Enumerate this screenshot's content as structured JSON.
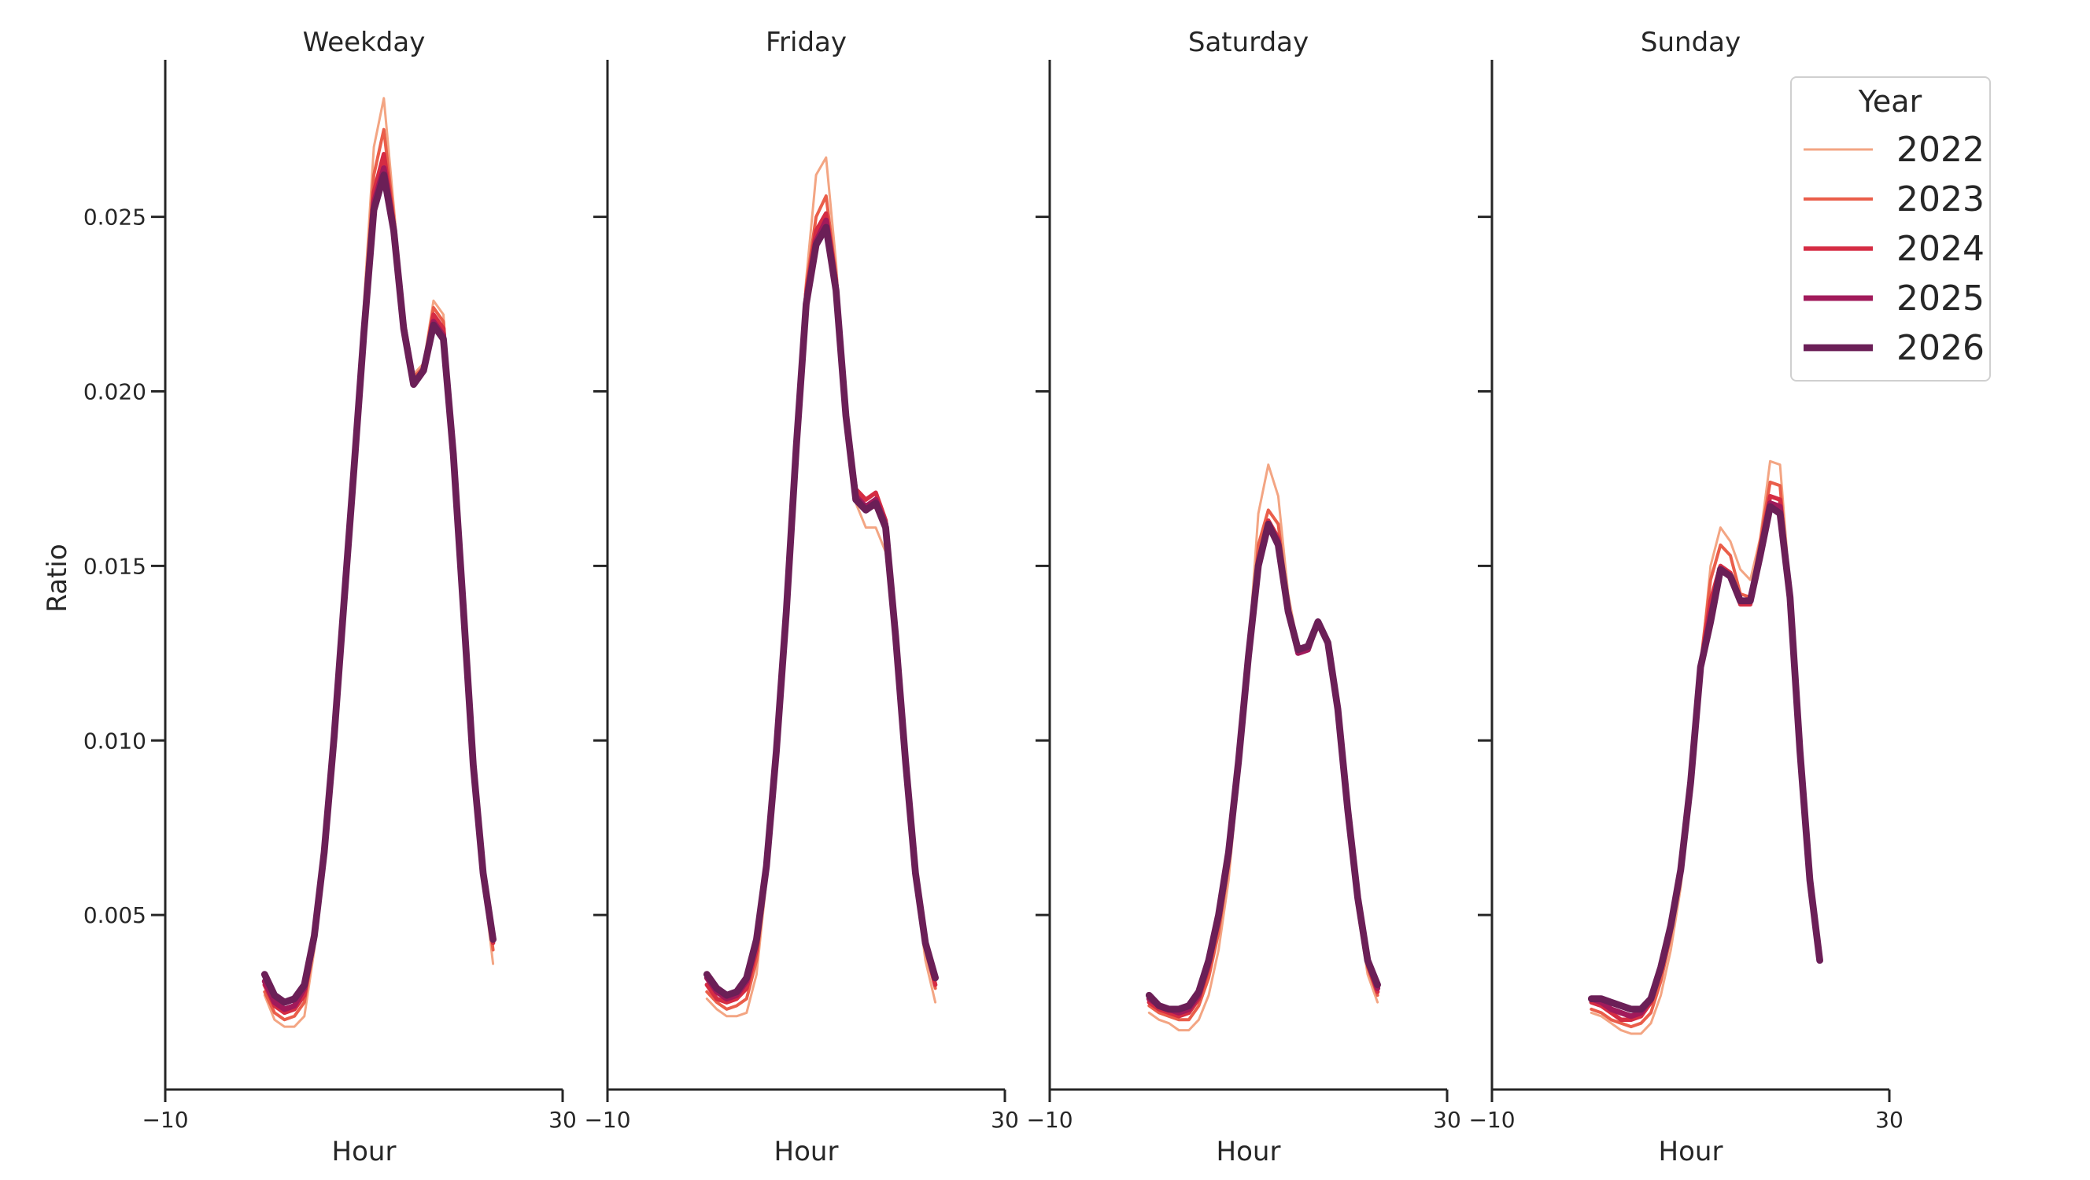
{
  "chart_data": {
    "type": "line",
    "ylabel": "Ratio",
    "xlabel": "Hour",
    "xlim": [
      -10,
      30
    ],
    "xticks": [
      "−10",
      "30"
    ],
    "ylim": [
      0,
      0.0295
    ],
    "yticks": [
      0.005,
      0.01,
      0.015,
      0.02,
      0.025
    ],
    "ytick_labels": [
      "0.005",
      "0.010",
      "0.015",
      "0.020",
      "0.025"
    ],
    "legend": {
      "title": "Year",
      "placement": "top-right"
    },
    "series_styles": [
      {
        "name": "2022",
        "color": "#f3a583",
        "width": 1.2
      },
      {
        "name": "2023",
        "color": "#ea5e4a",
        "width": 1.6
      },
      {
        "name": "2024",
        "color": "#d52c43",
        "width": 2.2
      },
      {
        "name": "2025",
        "color": "#a11a5b",
        "width": 2.8
      },
      {
        "name": "2026",
        "color": "#6b1f57",
        "width": 3.5
      }
    ],
    "x": [
      0,
      1,
      2,
      3,
      4,
      5,
      6,
      7,
      8,
      9,
      10,
      11,
      12,
      13,
      14,
      15,
      16,
      17,
      18,
      19,
      20,
      21,
      22,
      23
    ],
    "panels": [
      {
        "title": "Weekday",
        "series": [
          {
            "name": "2022",
            "values": [
              0.0027,
              0.002,
              0.0018,
              0.0018,
              0.0021,
              0.004,
              0.0066,
              0.01,
              0.014,
              0.018,
              0.0225,
              0.027,
              0.0284,
              0.0253,
              0.0222,
              0.0205,
              0.0208,
              0.0226,
              0.0222,
              0.0183,
              0.0138,
              0.0093,
              0.006,
              0.0036
            ]
          },
          {
            "name": "2023",
            "values": [
              0.0028,
              0.0022,
              0.002,
              0.0021,
              0.0025,
              0.0042,
              0.0067,
              0.0101,
              0.0141,
              0.018,
              0.0222,
              0.0262,
              0.0275,
              0.025,
              0.022,
              0.0204,
              0.0207,
              0.0224,
              0.022,
              0.0182,
              0.0137,
              0.0093,
              0.0061,
              0.004
            ]
          },
          {
            "name": "2024",
            "values": [
              0.003,
              0.0024,
              0.0022,
              0.0023,
              0.0027,
              0.0043,
              0.0067,
              0.0101,
              0.014,
              0.0179,
              0.022,
              0.0257,
              0.0268,
              0.0248,
              0.0219,
              0.0203,
              0.0206,
              0.0222,
              0.0218,
              0.0182,
              0.0137,
              0.0093,
              0.0061,
              0.0042
            ]
          },
          {
            "name": "2025",
            "values": [
              0.0031,
              0.0025,
              0.0023,
              0.0024,
              0.0029,
              0.0043,
              0.0068,
              0.0101,
              0.014,
              0.0178,
              0.0218,
              0.0254,
              0.0264,
              0.0247,
              0.0219,
              0.0202,
              0.0206,
              0.022,
              0.0216,
              0.0182,
              0.0138,
              0.0093,
              0.0062,
              0.0043
            ]
          },
          {
            "name": "2026",
            "values": [
              0.0033,
              0.0027,
              0.0025,
              0.0026,
              0.003,
              0.0044,
              0.0068,
              0.0101,
              0.014,
              0.0178,
              0.0217,
              0.0252,
              0.0262,
              0.0246,
              0.0218,
              0.0202,
              0.0206,
              0.0219,
              0.0215,
              0.0182,
              0.0138,
              0.0093,
              0.0062,
              0.0043
            ]
          }
        ]
      },
      {
        "title": "Friday",
        "series": [
          {
            "name": "2022",
            "values": [
              0.0026,
              0.0023,
              0.0021,
              0.0021,
              0.0022,
              0.0033,
              0.006,
              0.0097,
              0.014,
              0.019,
              0.0232,
              0.0262,
              0.0267,
              0.0237,
              0.0194,
              0.0168,
              0.0161,
              0.0161,
              0.0154,
              0.0127,
              0.0091,
              0.0059,
              0.0037,
              0.0025
            ]
          },
          {
            "name": "2023",
            "values": [
              0.0028,
              0.0025,
              0.0023,
              0.0024,
              0.0026,
              0.0037,
              0.0062,
              0.0097,
              0.0139,
              0.0188,
              0.023,
              0.025,
              0.0256,
              0.0233,
              0.0194,
              0.017,
              0.0166,
              0.0167,
              0.016,
              0.013,
              0.0093,
              0.0061,
              0.004,
              0.0029
            ]
          },
          {
            "name": "2024",
            "values": [
              0.003,
              0.0026,
              0.0025,
              0.0026,
              0.0029,
              0.004,
              0.0063,
              0.0097,
              0.0138,
              0.0186,
              0.0228,
              0.0246,
              0.0251,
              0.0232,
              0.0194,
              0.0172,
              0.0169,
              0.0171,
              0.0163,
              0.0131,
              0.0094,
              0.0062,
              0.0041,
              0.003
            ]
          },
          {
            "name": "2025",
            "values": [
              0.0032,
              0.0028,
              0.0026,
              0.0027,
              0.0031,
              0.0042,
              0.0064,
              0.0097,
              0.0138,
              0.0185,
              0.0226,
              0.0243,
              0.0249,
              0.023,
              0.0194,
              0.017,
              0.0167,
              0.0169,
              0.0162,
              0.0131,
              0.0094,
              0.0062,
              0.0042,
              0.0032
            ]
          },
          {
            "name": "2026",
            "values": [
              0.0033,
              0.0029,
              0.0027,
              0.0028,
              0.0032,
              0.0043,
              0.0064,
              0.0097,
              0.0137,
              0.0184,
              0.0225,
              0.0242,
              0.0247,
              0.0229,
              0.0193,
              0.0169,
              0.0166,
              0.0168,
              0.0161,
              0.013,
              0.0094,
              0.0062,
              0.0042,
              0.0032
            ]
          }
        ]
      },
      {
        "title": "Saturday",
        "series": [
          {
            "name": "2022",
            "values": [
              0.0022,
              0.002,
              0.0019,
              0.0017,
              0.0017,
              0.002,
              0.0027,
              0.004,
              0.006,
              0.009,
              0.0125,
              0.0165,
              0.0179,
              0.017,
              0.0142,
              0.0127,
              0.0127,
              0.0133,
              0.0127,
              0.0107,
              0.0077,
              0.0051,
              0.0033,
              0.0025
            ]
          },
          {
            "name": "2023",
            "values": [
              0.0024,
              0.0022,
              0.0021,
              0.002,
              0.002,
              0.0024,
              0.0032,
              0.0045,
              0.0064,
              0.0092,
              0.0124,
              0.0156,
              0.0166,
              0.0162,
              0.0139,
              0.0126,
              0.0126,
              0.0133,
              0.0128,
              0.0108,
              0.0078,
              0.0053,
              0.0035,
              0.0027
            ]
          },
          {
            "name": "2024",
            "values": [
              0.0025,
              0.0023,
              0.0022,
              0.0021,
              0.0022,
              0.0026,
              0.0035,
              0.0048,
              0.0066,
              0.0093,
              0.0124,
              0.0152,
              0.0163,
              0.0158,
              0.0137,
              0.0125,
              0.0126,
              0.0133,
              0.0128,
              0.0109,
              0.0079,
              0.0054,
              0.0036,
              0.0028
            ]
          },
          {
            "name": "2025",
            "values": [
              0.0026,
              0.0024,
              0.0023,
              0.0022,
              0.0023,
              0.0027,
              0.0037,
              0.0049,
              0.0067,
              0.0094,
              0.0124,
              0.0151,
              0.0162,
              0.0157,
              0.0137,
              0.0125,
              0.0126,
              0.0134,
              0.0128,
              0.0109,
              0.008,
              0.0055,
              0.0037,
              0.0029
            ]
          },
          {
            "name": "2026",
            "values": [
              0.0027,
              0.0024,
              0.0023,
              0.0023,
              0.0024,
              0.0028,
              0.0037,
              0.005,
              0.0068,
              0.0094,
              0.0124,
              0.015,
              0.0162,
              0.0156,
              0.0137,
              0.0126,
              0.0127,
              0.0134,
              0.0128,
              0.0109,
              0.008,
              0.0055,
              0.0037,
              0.003
            ]
          }
        ]
      },
      {
        "title": "Sunday",
        "series": [
          {
            "name": "2022",
            "values": [
              0.0022,
              0.0021,
              0.0019,
              0.0017,
              0.0016,
              0.0016,
              0.0019,
              0.0027,
              0.004,
              0.0058,
              0.0085,
              0.012,
              0.015,
              0.0161,
              0.0157,
              0.0149,
              0.0146,
              0.0158,
              0.018,
              0.0179,
              0.0143,
              0.0098,
              0.0061,
              0.004
            ]
          },
          {
            "name": "2023",
            "values": [
              0.0023,
              0.0022,
              0.002,
              0.0019,
              0.0018,
              0.0019,
              0.0022,
              0.0031,
              0.0044,
              0.0062,
              0.0087,
              0.0122,
              0.0146,
              0.0156,
              0.0153,
              0.0142,
              0.0141,
              0.0157,
              0.0174,
              0.0173,
              0.0141,
              0.0098,
              0.0061,
              0.004
            ]
          },
          {
            "name": "2024",
            "values": [
              0.0025,
              0.0024,
              0.0022,
              0.002,
              0.002,
              0.0021,
              0.0025,
              0.0034,
              0.0046,
              0.0063,
              0.0088,
              0.0121,
              0.014,
              0.015,
              0.0148,
              0.0139,
              0.0139,
              0.0155,
              0.017,
              0.0169,
              0.014,
              0.0097,
              0.006,
              0.0039
            ]
          },
          {
            "name": "2025",
            "values": [
              0.0026,
              0.0025,
              0.0023,
              0.0022,
              0.0021,
              0.0022,
              0.0026,
              0.0035,
              0.0047,
              0.0063,
              0.0088,
              0.0121,
              0.0136,
              0.0149,
              0.0147,
              0.014,
              0.014,
              0.0154,
              0.0168,
              0.0167,
              0.014,
              0.0097,
              0.006,
              0.0038
            ]
          },
          {
            "name": "2026",
            "values": [
              0.0026,
              0.0026,
              0.0025,
              0.0024,
              0.0023,
              0.0023,
              0.0026,
              0.0035,
              0.0047,
              0.0063,
              0.0088,
              0.0121,
              0.0134,
              0.0149,
              0.0147,
              0.014,
              0.014,
              0.0153,
              0.0167,
              0.0165,
              0.0141,
              0.0097,
              0.006,
              0.0037
            ]
          }
        ]
      }
    ]
  }
}
